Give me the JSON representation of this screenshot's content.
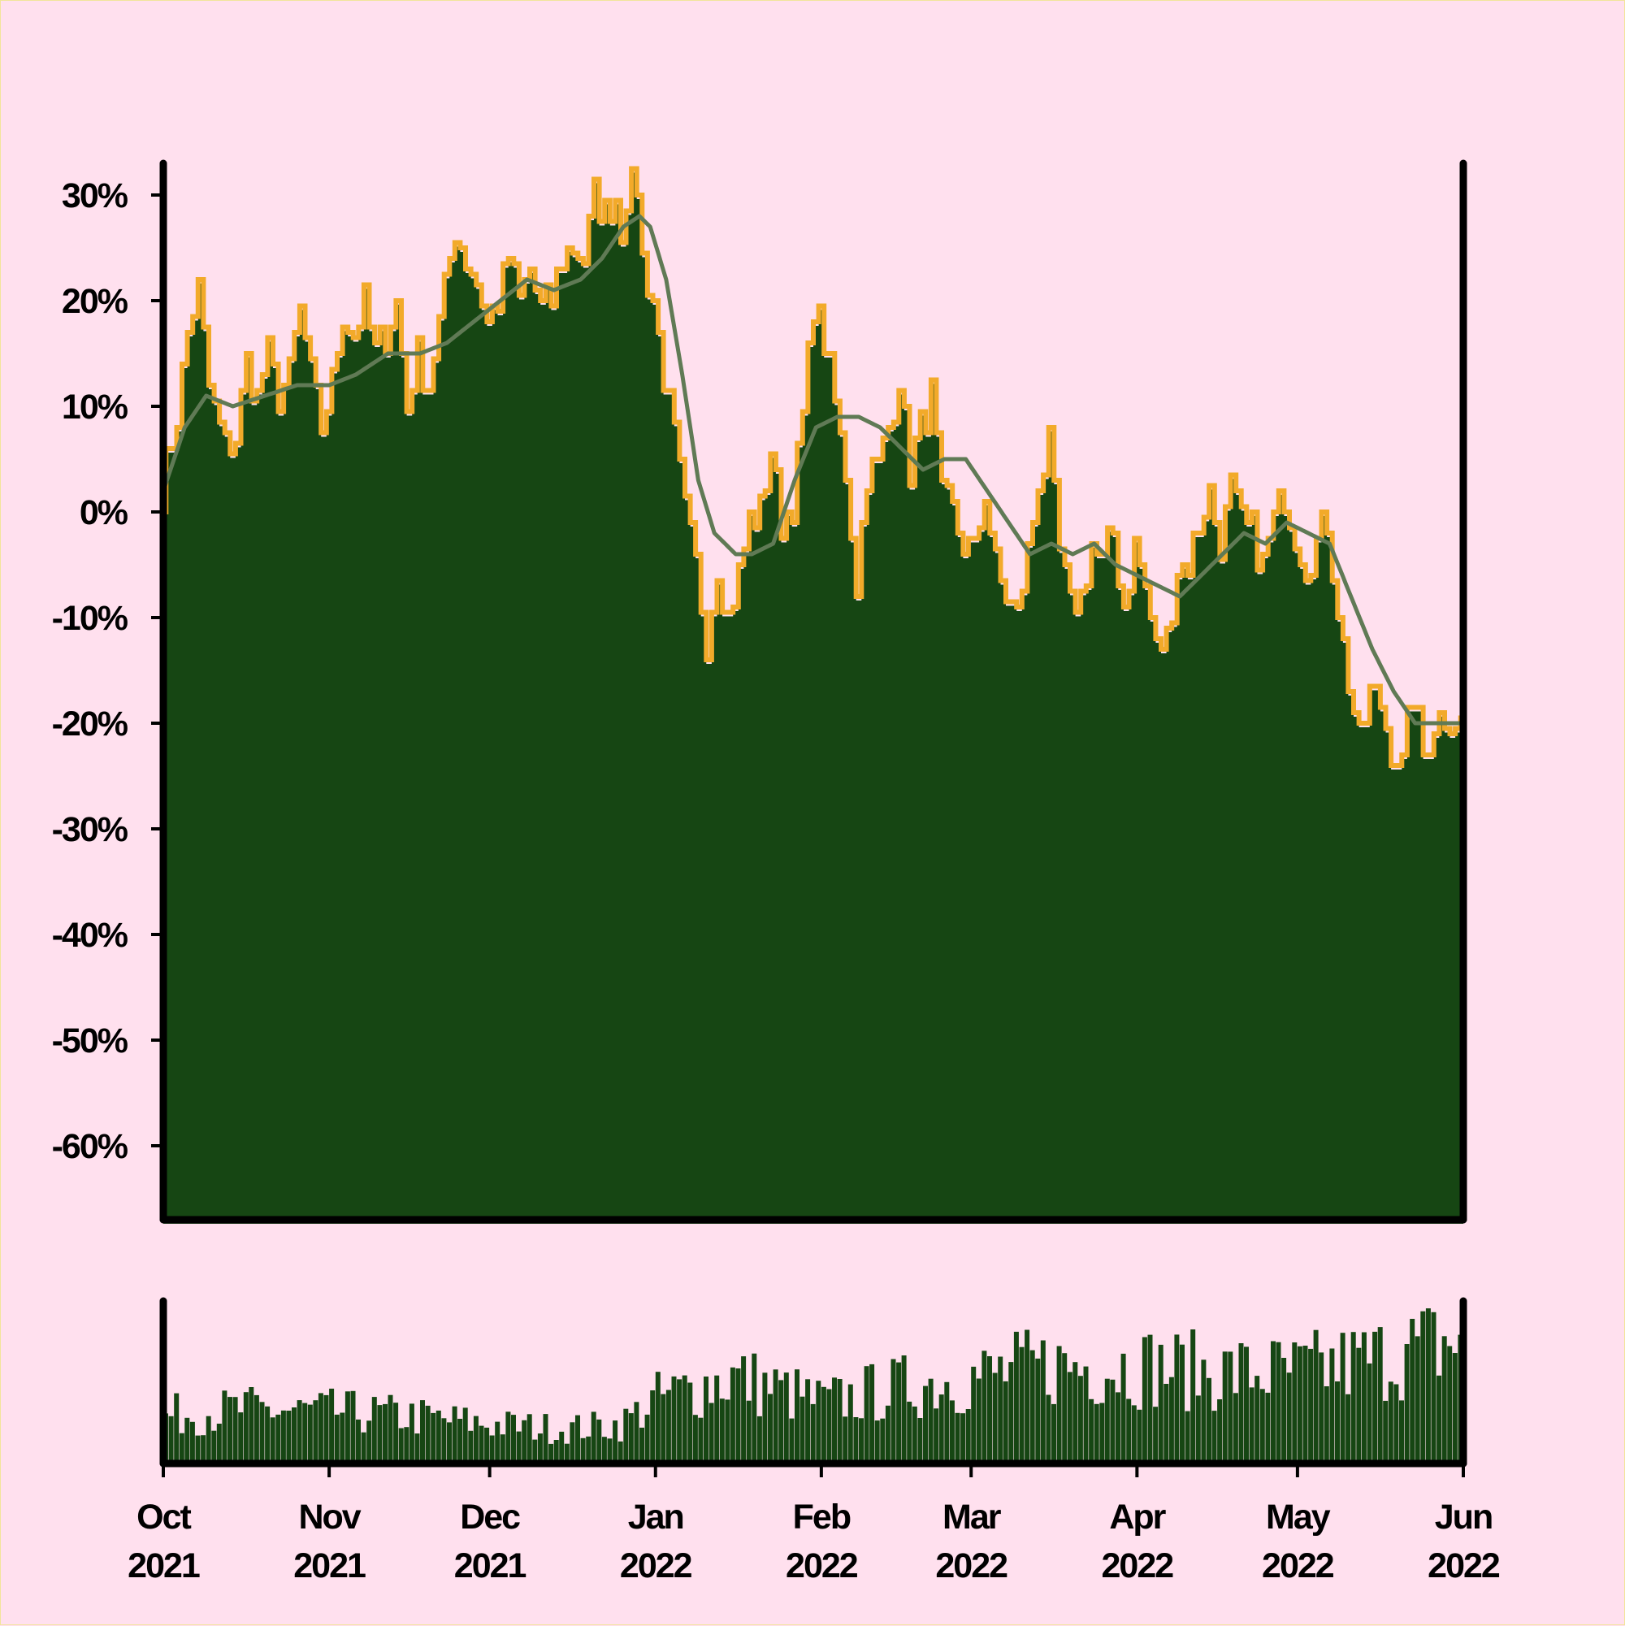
{
  "chart_data": {
    "type": "area",
    "x_start": "2021-10-01",
    "x_end": "2022-06-01",
    "ylim": [
      -67,
      33
    ],
    "y_ticks": [
      "30%",
      "20%",
      "10%",
      "0%",
      "-10%",
      "-20%",
      "-30%",
      "-40%",
      "-50%",
      "-60%"
    ],
    "y_tick_values": [
      30,
      20,
      10,
      0,
      -10,
      -20,
      -30,
      -40,
      -50,
      -60
    ],
    "x_tick_labels": [
      {
        "month": "Oct",
        "year": "2021",
        "date": "2021-10-01"
      },
      {
        "month": "Nov",
        "year": "2021",
        "date": "2021-11-01"
      },
      {
        "month": "Dec",
        "year": "2021",
        "date": "2021-12-01"
      },
      {
        "month": "Jan",
        "year": "2022",
        "date": "2022-01-01"
      },
      {
        "month": "Feb",
        "year": "2022",
        "date": "2022-02-01"
      },
      {
        "month": "Mar",
        "year": "2022",
        "date": "2022-03-01"
      },
      {
        "month": "Apr",
        "year": "2022",
        "date": "2022-04-01"
      },
      {
        "month": "May",
        "year": "2022",
        "date": "2022-05-01"
      },
      {
        "month": "Jun",
        "year": "2022",
        "date": "2022-06-01"
      }
    ],
    "series": [
      {
        "values": [
          [
            "2021-10-01",
            2
          ],
          [
            "2021-10-04",
            9
          ],
          [
            "2021-10-06",
            17
          ],
          [
            "2021-10-08",
            21
          ],
          [
            "2021-10-10",
            12
          ],
          [
            "2021-10-13",
            6
          ],
          [
            "2021-10-15",
            7
          ],
          [
            "2021-10-17",
            14
          ],
          [
            "2021-10-19",
            11
          ],
          [
            "2021-10-21",
            15
          ],
          [
            "2021-10-23",
            11
          ],
          [
            "2021-10-25",
            13
          ],
          [
            "2021-10-27",
            19
          ],
          [
            "2021-10-29",
            13
          ],
          [
            "2021-10-31",
            8
          ],
          [
            "2021-11-02",
            12
          ],
          [
            "2021-11-04",
            19
          ],
          [
            "2021-11-06",
            17
          ],
          [
            "2021-11-08",
            20
          ],
          [
            "2021-11-10",
            15
          ],
          [
            "2021-11-12",
            17
          ],
          [
            "2021-11-14",
            20
          ],
          [
            "2021-11-16",
            10
          ],
          [
            "2021-11-18",
            15
          ],
          [
            "2021-11-20",
            12
          ],
          [
            "2021-11-23",
            21
          ],
          [
            "2021-11-25",
            27
          ],
          [
            "2021-11-27",
            24
          ],
          [
            "2021-11-29",
            22
          ],
          [
            "2021-12-01",
            18
          ],
          [
            "2021-12-03",
            20
          ],
          [
            "2021-12-05",
            24
          ],
          [
            "2021-12-07",
            20
          ],
          [
            "2021-12-09",
            23
          ],
          [
            "2021-12-11",
            19
          ],
          [
            "2021-12-13",
            20
          ],
          [
            "2021-12-15",
            24
          ],
          [
            "2021-12-17",
            25
          ],
          [
            "2021-12-19",
            24
          ],
          [
            "2021-12-21",
            30
          ],
          [
            "2021-12-23",
            28
          ],
          [
            "2021-12-25",
            30
          ],
          [
            "2021-12-26",
            27
          ],
          [
            "2021-12-27",
            30
          ],
          [
            "2021-12-29",
            31
          ],
          [
            "2021-12-30",
            24
          ],
          [
            "2022-01-01",
            20
          ],
          [
            "2022-01-03",
            13
          ],
          [
            "2022-01-05",
            7
          ],
          [
            "2022-01-07",
            0
          ],
          [
            "2022-01-09",
            -5
          ],
          [
            "2022-01-11",
            -12
          ],
          [
            "2022-01-13",
            -5
          ],
          [
            "2022-01-15",
            -10
          ],
          [
            "2022-01-17",
            -6
          ],
          [
            "2022-01-19",
            -1
          ],
          [
            "2022-01-21",
            0
          ],
          [
            "2022-01-23",
            6
          ],
          [
            "2022-01-25",
            -1
          ],
          [
            "2022-01-27",
            1
          ],
          [
            "2022-01-29",
            9
          ],
          [
            "2022-01-31",
            20
          ],
          [
            "2022-02-02",
            16
          ],
          [
            "2022-02-04",
            10
          ],
          [
            "2022-02-06",
            4
          ],
          [
            "2022-02-08",
            -7
          ],
          [
            "2022-02-10",
            4
          ],
          [
            "2022-02-12",
            4
          ],
          [
            "2022-02-14",
            8
          ],
          [
            "2022-02-16",
            13
          ],
          [
            "2022-02-18",
            4
          ],
          [
            "2022-02-20",
            8
          ],
          [
            "2022-02-22",
            11
          ],
          [
            "2022-02-24",
            1
          ],
          [
            "2022-02-26",
            0
          ],
          [
            "2022-02-28",
            -3
          ],
          [
            "2022-03-02",
            -4
          ],
          [
            "2022-03-04",
            2
          ],
          [
            "2022-03-06",
            -5
          ],
          [
            "2022-03-08",
            -8
          ],
          [
            "2022-03-10",
            -10
          ],
          [
            "2022-03-12",
            -4
          ],
          [
            "2022-03-14",
            3
          ],
          [
            "2022-03-16",
            6
          ],
          [
            "2022-03-18",
            -4
          ],
          [
            "2022-03-20",
            -9
          ],
          [
            "2022-03-22",
            -8
          ],
          [
            "2022-03-24",
            -3
          ],
          [
            "2022-03-26",
            -5
          ],
          [
            "2022-03-28",
            -2
          ],
          [
            "2022-03-30",
            -9
          ],
          [
            "2022-04-01",
            -3
          ],
          [
            "2022-04-03",
            -7
          ],
          [
            "2022-04-05",
            -13
          ],
          [
            "2022-04-07",
            -12
          ],
          [
            "2022-04-09",
            -5
          ],
          [
            "2022-04-11",
            -5
          ],
          [
            "2022-04-13",
            -1
          ],
          [
            "2022-04-15",
            2
          ],
          [
            "2022-04-17",
            -3
          ],
          [
            "2022-04-19",
            2
          ],
          [
            "2022-04-21",
            -1
          ],
          [
            "2022-04-23",
            -2
          ],
          [
            "2022-04-25",
            -5
          ],
          [
            "2022-04-27",
            -1
          ],
          [
            "2022-04-29",
            2
          ],
          [
            "2022-05-01",
            -2
          ],
          [
            "2022-05-03",
            -5
          ],
          [
            "2022-05-05",
            -3
          ],
          [
            "2022-05-07",
            -1
          ],
          [
            "2022-05-09",
            -9
          ],
          [
            "2022-05-11",
            -16
          ],
          [
            "2022-05-13",
            -22
          ],
          [
            "2022-05-15",
            -17
          ],
          [
            "2022-05-17",
            -18
          ],
          [
            "2022-05-19",
            -22
          ],
          [
            "2022-05-21",
            -24
          ],
          [
            "2022-05-23",
            -17
          ],
          [
            "2022-05-25",
            -23
          ],
          [
            "2022-05-27",
            -20
          ],
          [
            "2022-05-29",
            -19
          ],
          [
            "2022-06-01",
            -20
          ]
        ]
      },
      {
        "values": [
          [
            "2021-10-01",
            2
          ],
          [
            "2021-10-05",
            8
          ],
          [
            "2021-10-09",
            11
          ],
          [
            "2021-10-14",
            10
          ],
          [
            "2021-10-20",
            11
          ],
          [
            "2021-10-26",
            12
          ],
          [
            "2021-11-01",
            12
          ],
          [
            "2021-11-06",
            13
          ],
          [
            "2021-11-12",
            15
          ],
          [
            "2021-11-18",
            15
          ],
          [
            "2021-11-23",
            16
          ],
          [
            "2021-11-28",
            18
          ],
          [
            "2021-12-03",
            20
          ],
          [
            "2021-12-08",
            22
          ],
          [
            "2021-12-13",
            21
          ],
          [
            "2021-12-18",
            22
          ],
          [
            "2021-12-22",
            24
          ],
          [
            "2021-12-26",
            27
          ],
          [
            "2021-12-29",
            28
          ],
          [
            "2021-12-31",
            27
          ],
          [
            "2022-01-03",
            22
          ],
          [
            "2022-01-06",
            13
          ],
          [
            "2022-01-09",
            3
          ],
          [
            "2022-01-12",
            -2
          ],
          [
            "2022-01-16",
            -4
          ],
          [
            "2022-01-19",
            -4
          ],
          [
            "2022-01-23",
            -3
          ],
          [
            "2022-01-27",
            3
          ],
          [
            "2022-01-31",
            8
          ],
          [
            "2022-02-04",
            9
          ],
          [
            "2022-02-08",
            9
          ],
          [
            "2022-02-12",
            8
          ],
          [
            "2022-02-16",
            6
          ],
          [
            "2022-02-20",
            4
          ],
          [
            "2022-02-24",
            5
          ],
          [
            "2022-02-28",
            5
          ],
          [
            "2022-03-04",
            2
          ],
          [
            "2022-03-08",
            -1
          ],
          [
            "2022-03-12",
            -4
          ],
          [
            "2022-03-16",
            -3
          ],
          [
            "2022-03-20",
            -4
          ],
          [
            "2022-03-24",
            -3
          ],
          [
            "2022-03-28",
            -5
          ],
          [
            "2022-04-01",
            -6
          ],
          [
            "2022-04-05",
            -7
          ],
          [
            "2022-04-09",
            -8
          ],
          [
            "2022-04-13",
            -6
          ],
          [
            "2022-04-17",
            -4
          ],
          [
            "2022-04-21",
            -2
          ],
          [
            "2022-04-25",
            -3
          ],
          [
            "2022-04-29",
            -1
          ],
          [
            "2022-05-03",
            -2
          ],
          [
            "2022-05-07",
            -3
          ],
          [
            "2022-05-11",
            -8
          ],
          [
            "2022-05-15",
            -13
          ],
          [
            "2022-05-19",
            -17
          ],
          [
            "2022-05-23",
            -20
          ],
          [
            "2022-05-27",
            -20
          ],
          [
            "2022-06-01",
            -20
          ]
        ]
      }
    ],
    "volume": {
      "levels": [
        [
          "2021-10-01",
          0.22
        ],
        [
          "2021-10-15",
          0.25
        ],
        [
          "2021-11-01",
          0.24
        ],
        [
          "2021-11-15",
          0.22
        ],
        [
          "2021-12-01",
          0.18
        ],
        [
          "2021-12-15",
          0.16
        ],
        [
          "2021-12-25",
          0.18
        ],
        [
          "2022-01-01",
          0.3
        ],
        [
          "2022-01-15",
          0.4
        ],
        [
          "2022-02-01",
          0.28
        ],
        [
          "2022-02-15",
          0.35
        ],
        [
          "2022-03-01",
          0.4
        ],
        [
          "2022-03-15",
          0.45
        ],
        [
          "2022-04-01",
          0.45
        ],
        [
          "2022-04-15",
          0.42
        ],
        [
          "2022-05-01",
          0.42
        ],
        [
          "2022-05-15",
          0.48
        ],
        [
          "2022-06-01",
          0.58
        ]
      ]
    },
    "colors": {
      "background": "#ffe0ee",
      "area_fill": "#164613",
      "price_line": "#f2aa2a",
      "moving_average": "#607a55",
      "volume_bars": "#164613",
      "axis": "#000000"
    },
    "grid": false,
    "legend": "none"
  }
}
